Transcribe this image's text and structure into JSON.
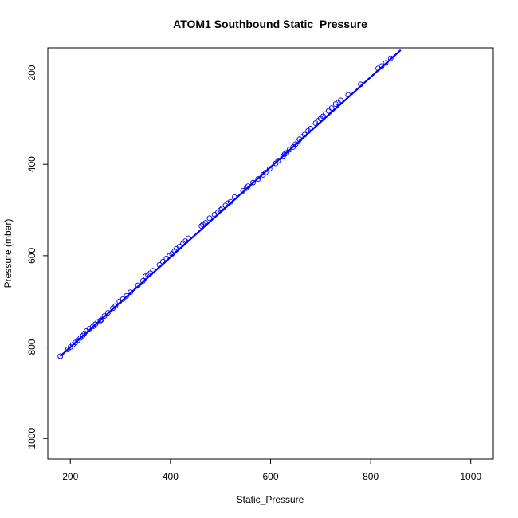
{
  "chart_data": {
    "type": "scatter",
    "title": "ATOM1 Southbound Static_Pressure",
    "xlabel": "Static_Pressure",
    "ylabel": "Pressure (mbar)",
    "xlim": [
      155,
      1045
    ],
    "ylim": [
      1045,
      145
    ],
    "y_inverted": true,
    "xticks": [
      200,
      400,
      600,
      800,
      1000
    ],
    "yticks": [
      200,
      400,
      600,
      800,
      1000
    ],
    "grid": false,
    "point_color": "#0000ff",
    "line_color": "#0000ff",
    "fit_line": {
      "x": [
        180,
        860
      ],
      "y": [
        820,
        150
      ]
    },
    "points": {
      "x": [
        180,
        195,
        200,
        205,
        210,
        215,
        220,
        225,
        228,
        232,
        238,
        245,
        250,
        255,
        260,
        262,
        268,
        275,
        285,
        290,
        298,
        305,
        312,
        320,
        335,
        345,
        350,
        355,
        360,
        365,
        378,
        385,
        392,
        398,
        403,
        408,
        412,
        418,
        425,
        430,
        436,
        462,
        465,
        470,
        478,
        488,
        495,
        500,
        503,
        510,
        515,
        520,
        528,
        545,
        552,
        555,
        565,
        575,
        585,
        590,
        598,
        610,
        615,
        625,
        628,
        632,
        638,
        645,
        650,
        655,
        658,
        663,
        668,
        675,
        680,
        690,
        695,
        700,
        705,
        710,
        716,
        722,
        730,
        735,
        740,
        755,
        780,
        815,
        822,
        830,
        840
      ],
      "y": [
        820,
        805,
        800,
        795,
        790,
        785,
        780,
        775,
        770,
        765,
        760,
        755,
        750,
        745,
        742,
        740,
        732,
        725,
        715,
        710,
        700,
        695,
        688,
        680,
        665,
        655,
        645,
        642,
        638,
        633,
        620,
        613,
        606,
        600,
        596,
        590,
        585,
        580,
        573,
        568,
        562,
        535,
        532,
        528,
        518,
        510,
        505,
        500,
        497,
        490,
        485,
        482,
        472,
        458,
        452,
        448,
        440,
        432,
        423,
        418,
        410,
        398,
        392,
        382,
        378,
        375,
        368,
        362,
        356,
        350,
        345,
        340,
        335,
        327,
        322,
        310,
        305,
        300,
        295,
        290,
        283,
        277,
        268,
        265,
        260,
        248,
        225,
        190,
        185,
        178,
        168
      ]
    }
  }
}
